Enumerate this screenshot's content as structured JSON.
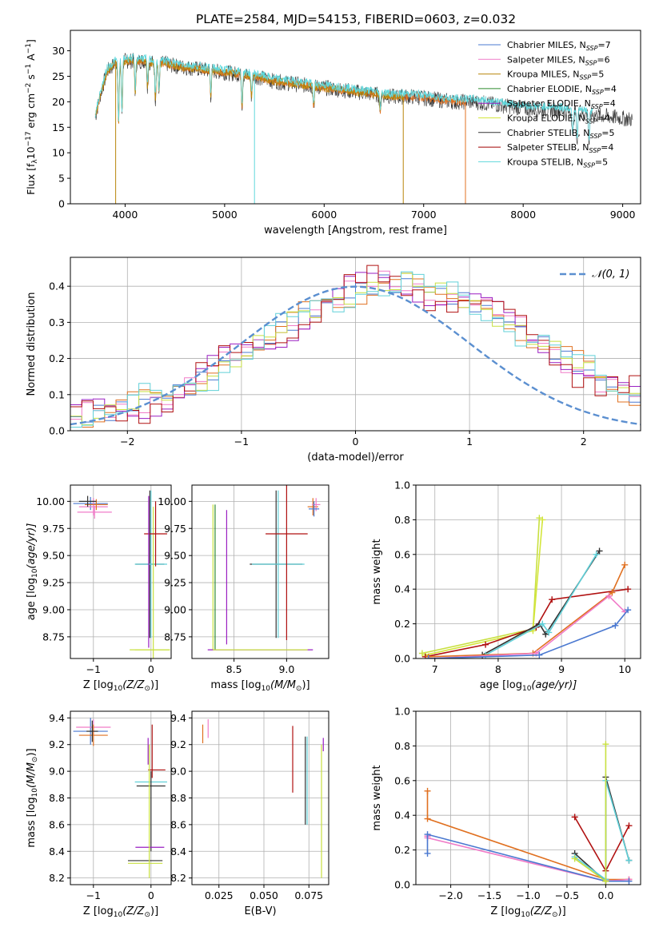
{
  "suptitle": "PLATE=2584, MJD=54153, FIBERID=0603, z=0.032",
  "colors": {
    "c1": "#4a78d0",
    "c2": "#f07cc8",
    "c3": "#b8860b",
    "c4": "#2e8b2e",
    "c5": "#9a1fc2",
    "c6": "#d4e63c",
    "c7": "#333333",
    "c8": "#a00000",
    "c9": "#5fd8dc",
    "orange": "#e07020",
    "red": "#b01010",
    "lime": "#c8e040",
    "cyan": "#60d0d8",
    "grey": "#888888",
    "gauss": "#5b8fd0",
    "grid": "#b0b0b0"
  },
  "chart_data": [
    {
      "id": "spectrum",
      "type": "line",
      "xlabel": "wavelength [Angstrom, rest frame]",
      "ylabel_main": "Flux [f",
      "ylabel_sub": "λ",
      "ylabel_mid": "10",
      "ylabel_sup1": "−17",
      "ylabel_mid2": " erg cm",
      "ylabel_sup2": "−2",
      "ylabel_mid3": " s",
      "ylabel_sup3": "−1",
      "ylabel_mid4": " A",
      "ylabel_sup4": "−1",
      "ylabel_end": "]",
      "xlim": [
        3450,
        9180
      ],
      "ylim": [
        0,
        34
      ],
      "xticks": [
        "4000",
        "5000",
        "6000",
        "7000",
        "8000",
        "9000"
      ],
      "xtick_values": [
        4000,
        5000,
        6000,
        7000,
        8000,
        9000
      ],
      "yticks": [
        "0",
        "5",
        "10",
        "15",
        "20",
        "25",
        "30"
      ],
      "ytick_values": [
        0,
        5,
        10,
        15,
        20,
        25,
        30
      ],
      "legend_position": "upper-right",
      "legend": [
        {
          "name": "Chabrier MILES, N",
          "sub": "SSP",
          "val": "=7",
          "color": "c1"
        },
        {
          "name": "Salpeter MILES, N",
          "sub": "SSP",
          "val": "=6",
          "color": "c2"
        },
        {
          "name": "Kroupa MILES, N",
          "sub": "SSP",
          "val": "=5",
          "color": "c3"
        },
        {
          "name": "Chabrier ELODIE, N",
          "sub": "SSP",
          "val": "=4",
          "color": "c4"
        },
        {
          "name": "Salpeter ELODIE, N",
          "sub": "SSP",
          "val": "=4",
          "color": "c5"
        },
        {
          "name": "Kroupa ELODIE, N",
          "sub": "SSP",
          "val": "=4",
          "color": "c6"
        },
        {
          "name": "Chabrier STELIB, N",
          "sub": "SSP",
          "val": "=5",
          "color": "c7"
        },
        {
          "name": "Salpeter STELIB, N",
          "sub": "SSP",
          "val": "=4",
          "color": "c8"
        },
        {
          "name": "Kroupa STELIB, N",
          "sub": "SSP",
          "val": "=5",
          "color": "c9"
        }
      ],
      "continuum": [
        [
          3700,
          17
        ],
        [
          3760,
          22
        ],
        [
          3820,
          26
        ],
        [
          3900,
          27.5
        ],
        [
          4000,
          28
        ],
        [
          4100,
          28
        ],
        [
          4200,
          28
        ],
        [
          4300,
          27.5
        ],
        [
          4400,
          27.5
        ],
        [
          4500,
          27
        ],
        [
          4700,
          26.5
        ],
        [
          4900,
          26
        ],
        [
          5100,
          25.5
        ],
        [
          5300,
          25
        ],
        [
          5500,
          24
        ],
        [
          5700,
          23.5
        ],
        [
          5900,
          23
        ],
        [
          6100,
          22.5
        ],
        [
          6300,
          22
        ],
        [
          6500,
          21.5
        ],
        [
          6700,
          21
        ],
        [
          6900,
          21
        ],
        [
          7100,
          20.5
        ],
        [
          7300,
          20
        ],
        [
          7500,
          20
        ],
        [
          7700,
          19.5
        ],
        [
          7900,
          19
        ],
        [
          8100,
          18.5
        ],
        [
          8300,
          18.5
        ],
        [
          8500,
          18
        ],
        [
          8700,
          17.5
        ],
        [
          8900,
          17
        ],
        [
          9100,
          16.5
        ]
      ],
      "absorption": [
        [
          3934,
          12
        ],
        [
          3968,
          10
        ],
        [
          4102,
          6
        ],
        [
          4226,
          5
        ],
        [
          4304,
          7
        ],
        [
          4340,
          6
        ],
        [
          4861,
          5
        ],
        [
          5175,
          6
        ],
        [
          5270,
          4
        ],
        [
          5895,
          4
        ],
        [
          6563,
          3
        ],
        [
          8498,
          5
        ],
        [
          8542,
          6
        ],
        [
          8662,
          6
        ]
      ],
      "drops": [
        {
          "x": 3905,
          "color": "c3",
          "to": 0
        },
        {
          "x": 5300,
          "color": "c9",
          "to": 0
        },
        {
          "x": 6795,
          "color": "c3",
          "to": 0
        },
        {
          "x": 7420,
          "color": "orange",
          "to": 0
        }
      ],
      "series_ranges": [
        {
          "color": "c7",
          "start": 3700,
          "end": 9100
        },
        {
          "color": "orange",
          "start": 3700,
          "end": 7420
        },
        {
          "color": "c3",
          "start": 3700,
          "end": 6795
        },
        {
          "color": "c9",
          "start": 3700,
          "end": 8700
        }
      ]
    },
    {
      "id": "histogram",
      "type": "histogram",
      "xlabel": "(data-model)/error",
      "ylabel": "Normed distribution",
      "xlim": [
        -2.5,
        2.5
      ],
      "ylim": [
        0,
        0.48
      ],
      "xticks": [
        "−2",
        "−1",
        "0",
        "1",
        "2"
      ],
      "xtick_values": [
        -2,
        -1,
        0,
        1,
        2
      ],
      "yticks": [
        "0.0",
        "0.1",
        "0.2",
        "0.3",
        "0.4"
      ],
      "ytick_values": [
        0,
        0.1,
        0.2,
        0.3,
        0.4
      ],
      "legend": "𝒩(0, 1)",
      "legend_position": "upper-right",
      "bin_width": 0.1,
      "base": [
        0.03,
        0.04,
        0.05,
        0.05,
        0.06,
        0.07,
        0.08,
        0.09,
        0.1,
        0.11,
        0.12,
        0.14,
        0.16,
        0.18,
        0.2,
        0.22,
        0.24,
        0.26,
        0.28,
        0.3,
        0.32,
        0.33,
        0.35,
        0.36,
        0.38,
        0.39,
        0.4,
        0.41,
        0.4,
        0.41,
        0.4,
        0.39,
        0.38,
        0.37,
        0.36,
        0.35,
        0.33,
        0.32,
        0.3,
        0.28,
        0.26,
        0.24,
        0.22,
        0.2,
        0.18,
        0.16,
        0.14,
        0.13,
        0.11,
        0.1
      ],
      "series_colors": [
        "c1",
        "c2",
        "orange",
        "c5",
        "lime",
        "red",
        "cyan"
      ]
    },
    {
      "id": "age-vs-Z",
      "type": "errorbar",
      "xlabel": "Z [log",
      "xlabel_sub": "10",
      "xlabel_end": "(Z/Z",
      "xlabel_sun": "⊙",
      "xlabel_close": ")]",
      "ylabel": "age  [log",
      "ylabel_sub": "10",
      "ylabel_end": "(age/yr)]",
      "xlim": [
        -1.4,
        0.35
      ],
      "ylim": [
        8.55,
        10.15
      ],
      "xticks": [
        "−1",
        "0"
      ],
      "xtick_values": [
        -1,
        0
      ],
      "yticks": [
        "8.75",
        "9.00",
        "9.25",
        "9.50",
        "9.75",
        "10.00"
      ],
      "ytick_values": [
        8.75,
        9.0,
        9.25,
        9.5,
        9.75,
        10.0
      ]
    },
    {
      "id": "age-vs-mass",
      "type": "errorbar",
      "xlabel": "mass [log",
      "xlabel_sub": "10",
      "xlabel_end": "(M/M",
      "xlabel_sun": "⊙",
      "xlabel_close": ")]",
      "xlim": [
        8.1,
        9.4
      ],
      "ylim": [
        8.55,
        10.15
      ],
      "xticks": [
        "8.5",
        "9.0"
      ],
      "xtick_values": [
        8.5,
        9.0
      ],
      "yticks": [
        "8.75",
        "9.00",
        "9.25",
        "9.50",
        "9.75",
        "10.00"
      ],
      "ytick_values": [
        8.75,
        9.0,
        9.25,
        9.5,
        9.75,
        10.0
      ]
    },
    {
      "id": "weight-vs-age",
      "type": "line",
      "xlabel": "age  [log",
      "xlabel_sub": "10",
      "xlabel_end": "(age/yr)]",
      "ylabel": "mass weight",
      "xlim": [
        6.7,
        10.25
      ],
      "ylim": [
        0,
        1.0
      ],
      "xticks": [
        "7",
        "8",
        "9",
        "10"
      ],
      "xtick_values": [
        7,
        8,
        9,
        10
      ],
      "yticks": [
        "0.0",
        "0.2",
        "0.4",
        "0.6",
        "0.8",
        "1.0"
      ],
      "ytick_values": [
        0,
        0.2,
        0.4,
        0.6,
        0.8,
        1.0
      ],
      "series": [
        {
          "color": "lime",
          "x": [
            6.8,
            8.55,
            8.65
          ],
          "y": [
            0.03,
            0.17,
            0.81
          ]
        },
        {
          "color": "c6",
          "x": [
            6.85,
            8.55,
            8.7
          ],
          "y": [
            0.02,
            0.16,
            0.8
          ]
        },
        {
          "color": "red",
          "x": [
            6.85,
            7.8,
            8.6,
            8.85,
            10.05
          ],
          "y": [
            0.01,
            0.08,
            0.18,
            0.34,
            0.4
          ]
        },
        {
          "color": "c7",
          "x": [
            7.75,
            8.65,
            8.75,
            9.6
          ],
          "y": [
            0.02,
            0.2,
            0.14,
            0.62
          ]
        },
        {
          "color": "cyan",
          "x": [
            7.8,
            8.7,
            8.8,
            9.55
          ],
          "y": [
            0.02,
            0.2,
            0.15,
            0.6
          ]
        },
        {
          "color": "orange",
          "x": [
            6.9,
            8.55,
            9.8,
            10.0
          ],
          "y": [
            0.01,
            0.03,
            0.38,
            0.54
          ]
        },
        {
          "color": "c2",
          "x": [
            6.9,
            8.6,
            9.75,
            10.0
          ],
          "y": [
            0.0,
            0.03,
            0.36,
            0.27
          ]
        },
        {
          "color": "c1",
          "x": [
            6.9,
            8.65,
            9.85,
            10.05
          ],
          "y": [
            0.0,
            0.02,
            0.19,
            0.28
          ]
        }
      ]
    },
    {
      "id": "mass-vs-Z",
      "type": "errorbar",
      "xlabel": "Z [log",
      "xlabel_sub": "10",
      "xlabel_end": "(Z/Z",
      "xlabel_sun": "⊙",
      "xlabel_close": ")]",
      "ylabel": "mass [log",
      "ylabel_sub": "10",
      "ylabel_end": "(M/M",
      "ylabel_sun": "⊙",
      "ylabel_close": ")]",
      "xlim": [
        -1.4,
        0.35
      ],
      "ylim": [
        8.15,
        9.45
      ],
      "xticks": [
        "−1",
        "0"
      ],
      "xtick_values": [
        -1,
        0
      ],
      "yticks": [
        "8.2",
        "8.4",
        "8.6",
        "8.8",
        "9.0",
        "9.2",
        "9.4"
      ],
      "ytick_values": [
        8.2,
        8.4,
        8.6,
        8.8,
        9.0,
        9.2,
        9.4
      ]
    },
    {
      "id": "mass-vs-EBV",
      "type": "errorbar",
      "xlabel": "E(B-V)",
      "xlim": [
        0.01,
        0.086
      ],
      "ylim": [
        8.15,
        9.45
      ],
      "xticks": [
        "0.025",
        "0.050",
        "0.075"
      ],
      "xtick_values": [
        0.025,
        0.05,
        0.075
      ],
      "yticks": [
        "8.2",
        "8.4",
        "8.6",
        "8.8",
        "9.0",
        "9.2",
        "9.4"
      ],
      "ytick_values": [
        8.2,
        8.4,
        8.6,
        8.8,
        9.0,
        9.2,
        9.4
      ]
    },
    {
      "id": "weight-vs-Z",
      "type": "line",
      "xlabel": "Z [log",
      "xlabel_sub": "10",
      "xlabel_end": "(Z/Z",
      "xlabel_sun": "⊙",
      "xlabel_close": ")]",
      "ylabel": "mass weight",
      "xlim": [
        -2.45,
        0.45
      ],
      "ylim": [
        0,
        1.0
      ],
      "xticks": [
        "−2.0",
        "−1.5",
        "−1.0",
        "−0.5",
        "0.0"
      ],
      "xtick_values": [
        -2.0,
        -1.5,
        -1.0,
        -0.5,
        0.0
      ],
      "yticks": [
        "0.0",
        "0.2",
        "0.4",
        "0.6",
        "0.8",
        "1.0"
      ],
      "ytick_values": [
        0,
        0.2,
        0.4,
        0.6,
        0.8,
        1.0
      ],
      "series": [
        {
          "color": "orange",
          "x": [
            -2.3,
            -2.3,
            0.0,
            0.3
          ],
          "y": [
            0.54,
            0.38,
            0.03,
            0.03
          ]
        },
        {
          "color": "c2",
          "x": [
            -2.3,
            -2.3,
            0.0,
            0.3
          ],
          "y": [
            0.28,
            0.27,
            0.02,
            0.03
          ]
        },
        {
          "color": "c1",
          "x": [
            -2.3,
            -2.3,
            0.0,
            0.3
          ],
          "y": [
            0.18,
            0.29,
            0.02,
            0.02
          ]
        },
        {
          "color": "red",
          "x": [
            -0.4,
            0.0,
            0.3
          ],
          "y": [
            0.39,
            0.08,
            0.34
          ]
        },
        {
          "color": "c7",
          "x": [
            -0.4,
            0.0,
            0.0,
            0.3
          ],
          "y": [
            0.18,
            0.02,
            0.62,
            0.14
          ]
        },
        {
          "color": "cyan",
          "x": [
            -0.4,
            0.0,
            0.0,
            0.3
          ],
          "y": [
            0.16,
            0.03,
            0.6,
            0.14
          ]
        },
        {
          "color": "lime",
          "x": [
            -0.4,
            0.0,
            0.0
          ],
          "y": [
            0.15,
            0.02,
            0.81
          ]
        }
      ]
    }
  ]
}
